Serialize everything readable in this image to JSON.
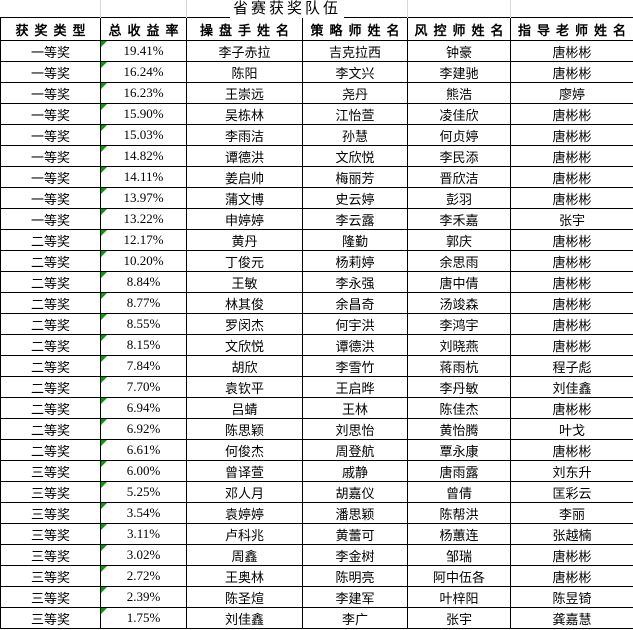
{
  "title": "省赛获奖队伍",
  "table": {
    "headers": [
      "获奖类型",
      "总收益率",
      "操盘手姓名",
      "策略师姓名",
      "风控师姓名",
      "指导老师姓名"
    ],
    "rows": [
      [
        "一等奖",
        "19.41%",
        "李子赤拉",
        "吉克拉西",
        "钟豪",
        "唐彬彬"
      ],
      [
        "一等奖",
        "16.24%",
        "陈阳",
        "李文兴",
        "李建驰",
        "唐彬彬"
      ],
      [
        "一等奖",
        "16.23%",
        "王崇远",
        "尧丹",
        "熊浩",
        "廖婷"
      ],
      [
        "一等奖",
        "15.90%",
        "吴栋林",
        "江怡萱",
        "凌佳欣",
        "唐彬彬"
      ],
      [
        "一等奖",
        "15.03%",
        "李雨洁",
        "孙慧",
        "何贞婷",
        "唐彬彬"
      ],
      [
        "一等奖",
        "14.82%",
        "谭德洪",
        "文欣悦",
        "李民添",
        "唐彬彬"
      ],
      [
        "一等奖",
        "14.11%",
        "姜启帅",
        "梅丽芳",
        "晋欣洁",
        "唐彬彬"
      ],
      [
        "一等奖",
        "13.97%",
        "蒲文博",
        "史云婷",
        "彭羽",
        "唐彬彬"
      ],
      [
        "一等奖",
        "13.22%",
        "申婷婷",
        "李云露",
        "李禾嘉",
        "张宇"
      ],
      [
        "二等奖",
        "12.17%",
        "黄丹",
        "隆勤",
        "郭庆",
        "唐彬彬"
      ],
      [
        "二等奖",
        "10.20%",
        "丁俊元",
        "杨莉婷",
        "余思雨",
        "唐彬彬"
      ],
      [
        "二等奖",
        "8.84%",
        "王敏",
        "李永强",
        "唐中倩",
        "唐彬彬"
      ],
      [
        "二等奖",
        "8.77%",
        "林其俊",
        "余昌奇",
        "汤竣森",
        "唐彬彬"
      ],
      [
        "二等奖",
        "8.55%",
        "罗闵杰",
        "何宇洪",
        "李鸿宇",
        "唐彬彬"
      ],
      [
        "二等奖",
        "8.15%",
        "文欣悦",
        "谭德洪",
        "刘晓燕",
        "唐彬彬"
      ],
      [
        "二等奖",
        "7.84%",
        "胡欣",
        "李雪竹",
        "蒋雨杭",
        "程子彪"
      ],
      [
        "二等奖",
        "7.70%",
        "袁钦平",
        "王启晔",
        "李丹敏",
        "刘佳鑫"
      ],
      [
        "二等奖",
        "6.94%",
        "吕蜻",
        "王林",
        "陈佳杰",
        "唐彬彬"
      ],
      [
        "二等奖",
        "6.92%",
        "陈思颖",
        "刘思怡",
        "黄怡腾",
        "叶戈"
      ],
      [
        "二等奖",
        "6.61%",
        "何俊杰",
        "周登航",
        "覃永康",
        "唐彬彬"
      ],
      [
        "三等奖",
        "6.00%",
        "曾译萱",
        "戚静",
        "唐雨露",
        "刘东升"
      ],
      [
        "三等奖",
        "5.25%",
        "邓人月",
        "胡嘉仪",
        "曾倩",
        "匡彩云"
      ],
      [
        "三等奖",
        "3.54%",
        "袁婷婷",
        "潘思颖",
        "陈帮洪",
        "李丽"
      ],
      [
        "三等奖",
        "3.11%",
        "卢科兆",
        "黄蕾可",
        "杨蕙连",
        "张越楠"
      ],
      [
        "三等奖",
        "3.02%",
        "周鑫",
        "李金树",
        "邹瑞",
        "唐彬彬"
      ],
      [
        "三等奖",
        "2.72%",
        "王奥林",
        "陈明亮",
        "阿中伍各",
        "唐彬彬"
      ],
      [
        "三等奖",
        "2.39%",
        "陈圣煊",
        "李建军",
        "叶梓阳",
        "陈昱锜"
      ],
      [
        "三等奖",
        "1.75%",
        "刘佳鑫",
        "李广",
        "张宇",
        "龚嘉慧"
      ]
    ],
    "percent_column_index": 1
  },
  "colors": {
    "border": "#000000",
    "text": "#000000",
    "background": "#ffffff",
    "flag_green": "#00a000",
    "gridline_gray": "#d8d8d8"
  },
  "icons": {
    "flag": "number-stored-as-text-flag-icon"
  }
}
